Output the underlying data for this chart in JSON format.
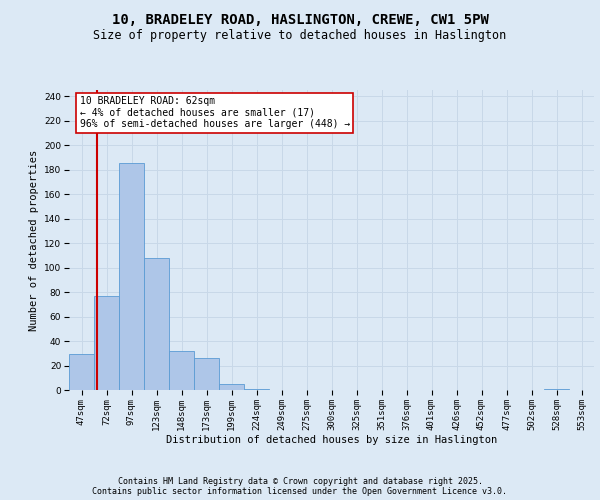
{
  "title_line1": "10, BRADELEY ROAD, HASLINGTON, CREWE, CW1 5PW",
  "title_line2": "Size of property relative to detached houses in Haslington",
  "xlabel": "Distribution of detached houses by size in Haslington",
  "ylabel": "Number of detached properties",
  "bar_labels": [
    "47sqm",
    "72sqm",
    "97sqm",
    "123sqm",
    "148sqm",
    "173sqm",
    "199sqm",
    "224sqm",
    "249sqm",
    "275sqm",
    "300sqm",
    "325sqm",
    "351sqm",
    "376sqm",
    "401sqm",
    "426sqm",
    "452sqm",
    "477sqm",
    "502sqm",
    "528sqm",
    "553sqm"
  ],
  "bar_values": [
    29,
    77,
    185,
    108,
    32,
    26,
    5,
    1,
    0,
    0,
    0,
    0,
    0,
    0,
    0,
    0,
    0,
    0,
    0,
    1,
    0
  ],
  "bar_color": "#aec6e8",
  "bar_edge_color": "#5a9bd4",
  "grid_color": "#c8d8e8",
  "background_color": "#dce9f5",
  "vline_color": "#cc0000",
  "annotation_line1": "10 BRADELEY ROAD: 62sqm",
  "annotation_line2": "← 4% of detached houses are smaller (17)",
  "annotation_line3": "96% of semi-detached houses are larger (448) →",
  "annotation_box_color": "#ffffff",
  "annotation_border_color": "#cc0000",
  "ylim": [
    0,
    245
  ],
  "yticks": [
    0,
    20,
    40,
    60,
    80,
    100,
    120,
    140,
    160,
    180,
    200,
    220,
    240
  ],
  "title_fontsize": 10,
  "subtitle_fontsize": 8.5,
  "axis_label_fontsize": 7.5,
  "tick_fontsize": 6.5,
  "annotation_fontsize": 7,
  "footer_fontsize": 6,
  "footer_line1": "Contains HM Land Registry data © Crown copyright and database right 2025.",
  "footer_line2": "Contains public sector information licensed under the Open Government Licence v3.0."
}
